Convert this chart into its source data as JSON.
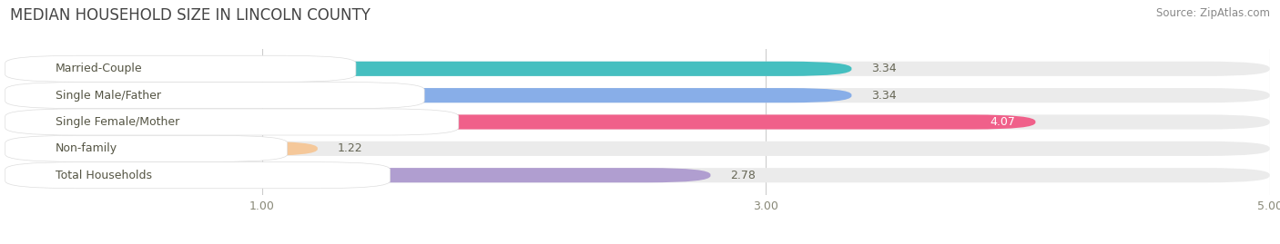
{
  "title": "MEDIAN HOUSEHOLD SIZE IN LINCOLN COUNTY",
  "source": "Source: ZipAtlas.com",
  "categories": [
    "Married-Couple",
    "Single Male/Father",
    "Single Female/Mother",
    "Non-family",
    "Total Households"
  ],
  "values": [
    3.34,
    3.34,
    4.07,
    1.22,
    2.78
  ],
  "bar_colors": [
    "#45bfc0",
    "#88aee8",
    "#f0608a",
    "#f5c89a",
    "#b09ed0"
  ],
  "xlim": [
    0,
    5.0
  ],
  "xticks": [
    1.0,
    3.0,
    5.0
  ],
  "background_color": "#ffffff",
  "bar_background_color": "#ebebeb",
  "title_fontsize": 12,
  "source_fontsize": 8.5,
  "label_fontsize": 9,
  "value_fontsize": 9
}
